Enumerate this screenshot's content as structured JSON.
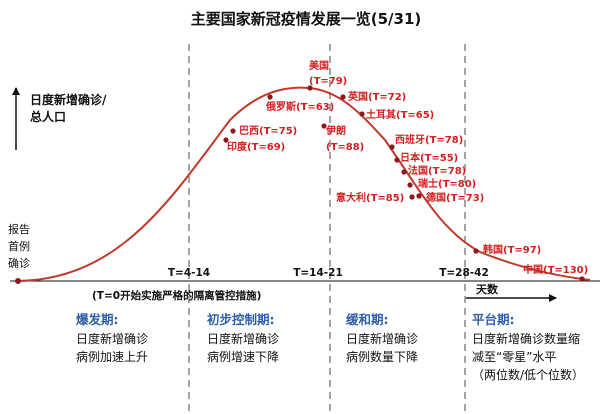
{
  "title": "主要国家新冠疫情发展一览(5/31)",
  "y_axis_label": [
    "日度新增确诊/",
    "总人口"
  ],
  "origin_label": [
    "报告",
    "首例",
    "确诊"
  ],
  "x_axis_label": "天数",
  "time_marks": [
    "T=4-14",
    "T=14-21",
    "T=28-42"
  ],
  "note": "(T=0开始实施严格的隔离管控措施)",
  "countries": [
    {
      "name": "美国",
      "t": "(T=79)"
    },
    {
      "name": "俄罗斯",
      "t": "(T=63)"
    },
    {
      "name": "巴西",
      "t": "(T=75)"
    },
    {
      "name": "印度",
      "t": "(T=69)"
    },
    {
      "name": "英国",
      "t": "(T=72)"
    },
    {
      "name": "土耳其",
      "t": "(T=65)"
    },
    {
      "name": "伊朗",
      "t": "(T=88)"
    },
    {
      "name": "西班牙",
      "t": "(T=78)"
    },
    {
      "name": "日本",
      "t": "(T=55)"
    },
    {
      "name": "法国",
      "t": "(T=78)"
    },
    {
      "name": "瑞士",
      "t": "(T=80)"
    },
    {
      "name": "德国",
      "t": "(T=73)"
    },
    {
      "name": "意大利",
      "t": "(T=85)"
    },
    {
      "name": "韩国",
      "t": "(T=97)"
    },
    {
      "name": "中国",
      "t": "(T=130)"
    }
  ],
  "phases": [
    {
      "name": "爆发期:",
      "desc": [
        "日度新增确诊",
        "病例加速上升"
      ]
    },
    {
      "name": "初步控制期:",
      "desc": [
        "日度新增确诊",
        "病例增速下降"
      ]
    },
    {
      "name": "缓和期:",
      "desc": [
        "日度新增确诊",
        "病例数量下降"
      ]
    },
    {
      "name": "平台期:",
      "desc": [
        "日度新增确诊数量缩",
        "减至“零星”水平",
        "（两位数/低个位数）"
      ]
    }
  ],
  "colors": {
    "curve": "#c0392b",
    "label": "#d32020",
    "phase": "#2f5fa8",
    "divider": "#9a9a9a"
  }
}
